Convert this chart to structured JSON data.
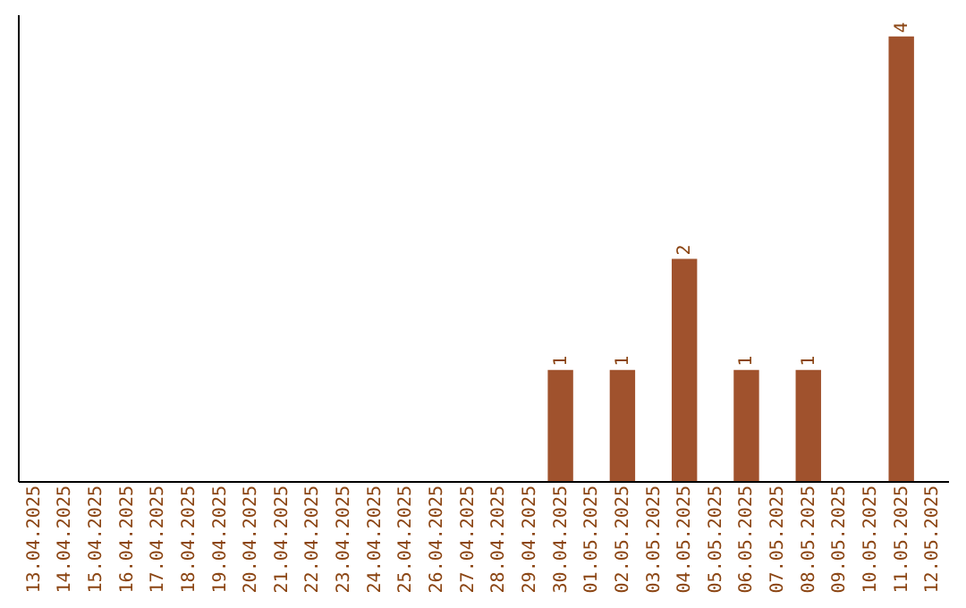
{
  "chart_data": {
    "type": "bar",
    "categories": [
      "13.04.2025",
      "14.04.2025",
      "15.04.2025",
      "16.04.2025",
      "17.04.2025",
      "18.04.2025",
      "19.04.2025",
      "20.04.2025",
      "21.04.2025",
      "22.04.2025",
      "23.04.2025",
      "24.04.2025",
      "25.04.2025",
      "26.04.2025",
      "27.04.2025",
      "28.04.2025",
      "29.04.2025",
      "30.04.2025",
      "01.05.2025",
      "02.05.2025",
      "03.05.2025",
      "04.05.2025",
      "05.05.2025",
      "06.05.2025",
      "07.05.2025",
      "08.05.2025",
      "09.05.2025",
      "10.05.2025",
      "11.05.2025",
      "12.05.2025"
    ],
    "values": [
      null,
      null,
      null,
      null,
      null,
      null,
      null,
      null,
      null,
      null,
      null,
      null,
      null,
      null,
      null,
      null,
      null,
      1,
      null,
      1,
      null,
      2,
      null,
      1,
      null,
      1,
      null,
      null,
      4,
      null
    ],
    "data_labels": true,
    "color": "#a0522d",
    "ylim": [
      0,
      4.2
    ],
    "tick_labels": "x"
  }
}
